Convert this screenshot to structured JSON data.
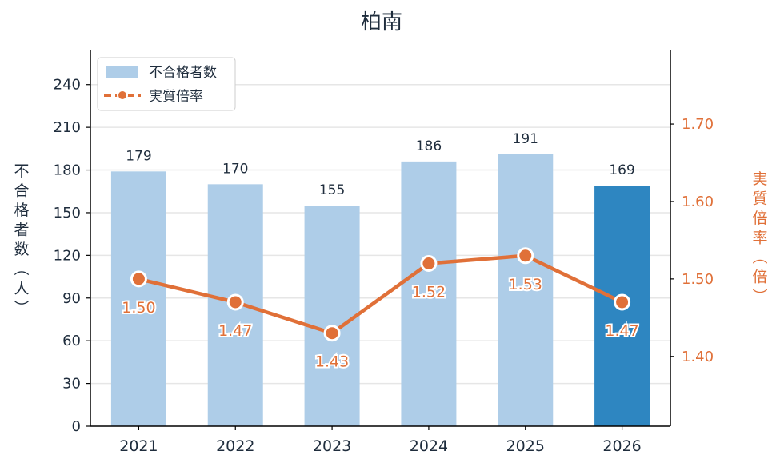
{
  "chart_data": {
    "type": "bar+line",
    "title": "柏南",
    "categories": [
      "2021",
      "2022",
      "2023",
      "2024",
      "2025",
      "2026"
    ],
    "ylabel_left": "不合格者数（人）",
    "ylabel_right": "実質倍率（倍）",
    "ylim_left": [
      0,
      264
    ],
    "yticks_left": [
      0,
      30,
      60,
      90,
      120,
      150,
      180,
      210,
      240
    ],
    "ylim_right": [
      1.31,
      1.795
    ],
    "yticks_right": [
      "1.40",
      "1.50",
      "1.60",
      "1.70"
    ],
    "grid": true,
    "legend_position": "top-left",
    "series": [
      {
        "name": "不合格者数",
        "kind": "bar",
        "axis": "left",
        "values": [
          179,
          170,
          155,
          186,
          191,
          169
        ],
        "color": "#aecde8",
        "highlight_color": "#2e86c1",
        "highlight_index": 5
      },
      {
        "name": "実質倍率",
        "kind": "line",
        "axis": "right",
        "values": [
          1.5,
          1.47,
          1.43,
          1.52,
          1.53,
          1.47
        ],
        "labels": [
          "1.50",
          "1.47",
          "1.43",
          "1.52",
          "1.53",
          "1.47"
        ],
        "color": "#e07038"
      }
    ]
  }
}
